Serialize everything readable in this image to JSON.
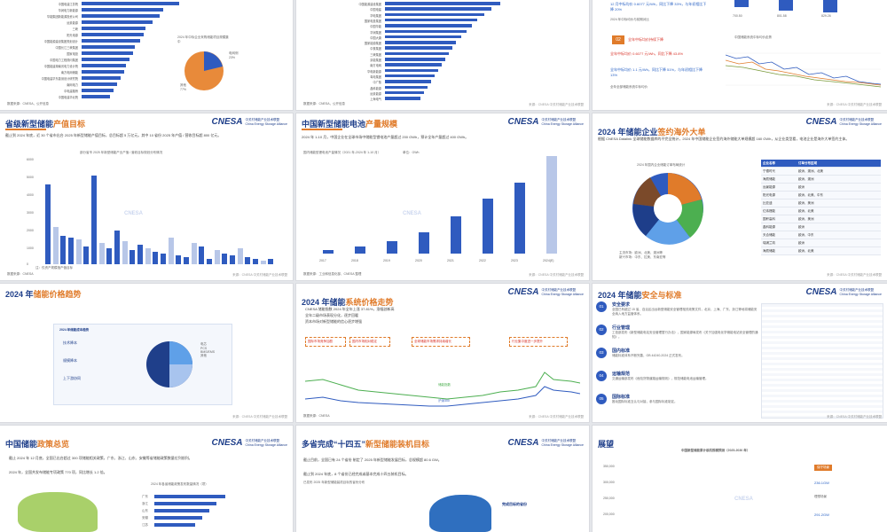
{
  "slides": {
    "s1": {
      "rows": [
        "中国电建江苏院",
        "华润电力新能源",
        "华能集团新能源投资公司",
        "远景能源",
        "三峡",
        "阳光电源",
        "中国能源建设集团规划设计",
        "中国长江三峡集团",
        "国家电投",
        "中国电力工程顾问集团",
        "中国能建湖南省电力设计院",
        "南方电网储能",
        "中国电建华东勘测设计研究院",
        "南网电力",
        "中电建路桥",
        "中国电建华北院"
      ],
      "note": "2024 年中标企业采购储能项目规模集中",
      "pie_labels": [
        "电网侧",
        "其他"
      ],
      "pie_values": [
        "23%",
        "77%"
      ],
      "source": "数据来源：CNESA，公开信息"
    },
    "s2": {
      "rows": [
        "中国能源建设集团",
        "中国电建",
        "华电集团",
        "国家电投集团",
        "中国华能",
        "华润集团",
        "中国大唐",
        "国家能源集团",
        "中核集团",
        "三峡集团",
        "京能集团",
        "南方电网",
        "华电新能源",
        "粤电集团",
        "中广核",
        "晶科能源",
        "远景能源",
        "上海电气"
      ],
      "source": "数据来源：CNESA，公开信息",
      "footer": "来源：CNESA 中关村储能产业技术联盟"
    },
    "s3": {
      "text1": "12 月中标均价 0.6077 元/Wh，同比下降 33%，与年初相比下降 20%",
      "text2": "2024 年中标均价与前期对比",
      "text3": "全年中标均价持续下降",
      "text4": "全年中标均价 0.6077 元/Wh，同比下降 43.8%",
      "text5": "全年中标均价 1.1 元/Wh，同比下降 51%，与年初相比下降 13%",
      "note": "全年全部储能系统中标均价",
      "bar_values": [
        "700.50",
        "801.58",
        "829.26"
      ],
      "axis": [
        "0.4",
        "0.35",
        "0.3"
      ],
      "chart_note": "中国储能系统中标均价走势",
      "footer": "来源：CNESA 中关村储能产业技术联盟"
    },
    "s4": {
      "title": "省级新型储能",
      "title_hl": "产值目标",
      "body": "截止到 2024 年底，近 30 个省市出台 2025 年新型储能产值目标，总目标超 5 万亿元。其中 10 省份 2025 年产值 / 营收目标超 800 亿元。",
      "chart_title": "部分省市 2025 年新型储能产业产值 / 营收目标规划分布情况",
      "categories": [
        "广东",
        "湖南",
        "江苏",
        "浙江",
        "四川",
        "内蒙古",
        "山东",
        "安徽",
        "贵州",
        "福建",
        "湖北",
        "上海",
        "重庆",
        "辽宁",
        "陕西"
      ],
      "yaxis": [
        "6000",
        "5000",
        "4000",
        "3000",
        "2000",
        "1000",
        "0"
      ],
      "legend": "注：仅资产规模指产值目标",
      "source": "数据来源：CNESA",
      "footer": "来源：CNESA 中关村储能产业技术联盟"
    },
    "s5": {
      "title": "中国新型储能电池",
      "title_hl": "产量规模",
      "body": "2024 年 1-10 月，中国企业在全球市场中储能型锂电池产量超过 200 GWh，预计全年产量超过 400 GWh。",
      "chart_title": "国内储能型锂电池产量情况（2021 年-2024 年 1-10 月）",
      "unit": "单位：GWh",
      "xlabels": [
        "2017",
        "2018",
        "2019",
        "2020",
        "2021",
        "2022",
        "2023",
        "2024(E)"
      ],
      "source": "数据来源：工业和信息化部，CNESA 整理",
      "footer": "来源：CNESA 中关村储能产业技术联盟"
    },
    "s6": {
      "title": "2024 年储能企业",
      "title_hl": "签约海外大单",
      "body": "根据 CNESA Datalink 全球储能数据库的不完全统计，2024 年中国储能企业签约海外储能大单规模超 160 GWh，从企业类型看，电池企业是海外大单签约主体。",
      "pie_title": "2024 年国内企业储能订单布局统计",
      "pie_labels": [
        "欧洲",
        "澳洲",
        "北美",
        "美洲",
        "中东",
        "亚洲",
        "其他"
      ],
      "table_head": [
        "企业名称",
        "订单分布区域"
      ],
      "table_rows": [
        [
          "宁德时代",
          "欧洲、澳洲、北美"
        ],
        [
          "海辰储能",
          "欧洲、澳洲"
        ],
        [
          "远景能源",
          "欧洲"
        ],
        [
          "阳光电源",
          "欧洲、北美、中东"
        ],
        [
          "比亚迪",
          "欧洲、美洲"
        ],
        [
          "亿纬锂能",
          "欧洲、北美"
        ],
        [
          "国轩高科",
          "欧洲、美洲"
        ],
        [
          "晶科能源",
          "欧洲"
        ],
        [
          "天合储能",
          "欧洲、中东"
        ],
        [
          "瑞浦兰钧",
          "欧洲"
        ],
        [
          "海辰储能",
          "欧洲、北美"
        ]
      ],
      "legend1": "主流市场：欧洲、北美、澳洲等",
      "legend2": "新兴市场：中东、拉美、东南亚等",
      "footer": "来源：CNESA 中关村储能产业技术联盟"
    },
    "s7": {
      "title": "2024 年",
      "title_hl": "储能价格趋势",
      "box_title": "2024 年储能成本趋势",
      "items": [
        "技术降本",
        "规模降本",
        "上下游协同"
      ],
      "legend": [
        "电芯",
        "PCS",
        "BMS/EMS",
        "其他"
      ],
      "footer": "来源：CNESA 中关村储能产业技术联盟"
    },
    "s8": {
      "title": "2024 年储能",
      "title_hl": "系统价格走势",
      "bullets": [
        "CNESA 储能指数 2024 年全年上涨 37.81%，涨幅创新高",
        "全年二级市场表现分化，逐步回暖",
        "资本市场对新型储能的信心逐步增强"
      ],
      "boxes": [
        "国际市场竞争加剧",
        "国内市场相对稳定",
        "全球储能市场需求持续增长",
        "行业集中度进一步提升"
      ],
      "series": [
        "储能指数",
        "沪深300"
      ],
      "source": "数据来源：CNESA",
      "footer": "来源：CNESA 中关村储能产业技术联盟"
    },
    "s9": {
      "title": "2024 年储能",
      "title_hl": "安全与标准",
      "sections": [
        {
          "num": "01",
          "head": "安全要求",
          "body": "全国已有超过 15 省、自治区出台新型储能安全管理相关政策文件，北京、上海、广东、浙江等地将储能安全纳入地方监管体系。"
        },
        {
          "num": "02",
          "head": "行业管理",
          "body": "工信部发布《新型储能电站安全管理暂行办法》，国家能源局发布《关于加强电化学储能电站安全管理的通知》。"
        },
        {
          "num": "03",
          "head": "国内标准",
          "body": "储能标准体系不断完善，GB 44240-2024 正式发布。"
        },
        {
          "num": "04",
          "head": "运输规范",
          "body": "交通运输部发布《危险货物道路运输规则》，规范储能电池运输管理。"
        },
        {
          "num": "05",
          "head": "国际标准",
          "body": "推动国际标准互认与对接，参与国际标准制定。"
        }
      ],
      "footer": "来源：CNESA 中关村储能产业技术联盟"
    },
    "s10": {
      "title": "中国储能",
      "title_hl": "政策总览",
      "bullets": [
        "截止 2024 年 12 月底，全国已出台超过 300 项储能相关政策，广东、浙江、山东、安徽等省储能政策数量位列前列。",
        "2024 年，全国共发布储能专项政策 770 项，同比增长 1.2 倍。"
      ],
      "chart_title": "2024 年各省储能政策发布数量情况（项）",
      "provinces": [
        "广东",
        "浙江",
        "山东",
        "安徽",
        "江苏"
      ]
    },
    "s11": {
      "title": "多省完成“十四五”",
      "title_hl": "新型储能装机目标",
      "bullets": [
        "截止目前，全国已有 24 个省份 制定了 2025 年新型储能发展目标，总规模超 80.6 GW。",
        "截止到 2024 年底，8 个省份已经完成或基本完成十四五装机目标。"
      ],
      "map_title": "已发布 2025 年新型储能装机目标的省份分布",
      "map_legend": "完成目标的省份"
    },
    "s12": {
      "title": "展望",
      "chart_title": "中国新型储能累计装机规模预测（2025-2030 年）",
      "yaxis": [
        "350,000",
        "300,000",
        "250,000",
        "200,000"
      ],
      "legend": "CNESA",
      "labels": [
        "保守场景",
        "理想场景"
      ],
      "values": [
        "236.1GW",
        "291.2GW"
      ]
    }
  },
  "brand": {
    "name": "CNESA",
    "sub1": "中关村储能产业技术联盟",
    "sub2": "China Energy Storage Alliance"
  },
  "colors": {
    "blue": "#2f5bbf",
    "orange": "#e07b2a",
    "red": "#d8342a",
    "green": "#4caf50"
  }
}
